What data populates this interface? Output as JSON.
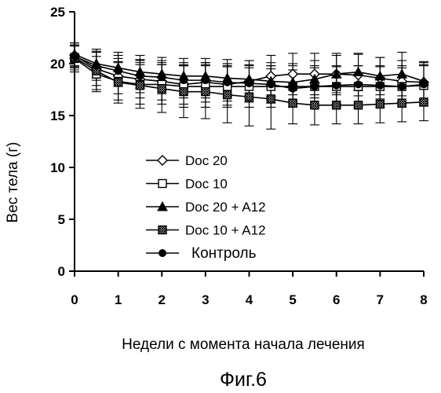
{
  "chart_data": {
    "type": "line",
    "xlabel": "Недели с момента начала лечения",
    "ylabel": "Вес тела (г)",
    "caption": "Фиг.6",
    "xlim": [
      0,
      8
    ],
    "ylim": [
      0,
      25
    ],
    "xticks": [
      0,
      1,
      2,
      3,
      4,
      5,
      6,
      7,
      8
    ],
    "yticks": [
      0,
      5,
      10,
      15,
      20,
      25
    ],
    "legend_position": "center-left",
    "x": [
      0,
      0.5,
      1,
      1.5,
      2,
      2.5,
      3,
      3.5,
      4,
      4.5,
      5,
      5.5,
      6,
      6.5,
      7,
      7.5,
      8
    ],
    "series": [
      {
        "name": "Doc 20",
        "marker": "diamond-open",
        "values": [
          20.8,
          19.5,
          18.8,
          18.5,
          18.3,
          18.0,
          18.2,
          18.0,
          18.3,
          18.8,
          19.0,
          19.0,
          19.0,
          18.9,
          18.6,
          18.3,
          18.2
        ],
        "errors": [
          1.2,
          1.6,
          1.7,
          1.8,
          1.8,
          1.9,
          1.9,
          2.0,
          2.0,
          2.0,
          2.0,
          2.0,
          2.0,
          2.0,
          2.0,
          2.0,
          2.0
        ]
      },
      {
        "name": "Doc 10",
        "marker": "square-open",
        "values": [
          20.5,
          19.0,
          18.3,
          18.0,
          18.0,
          17.8,
          17.8,
          17.8,
          17.8,
          17.8,
          17.8,
          17.8,
          17.8,
          17.8,
          17.8,
          17.8,
          17.9
        ],
        "errors": [
          1.3,
          1.7,
          1.8,
          1.9,
          1.9,
          2.0,
          2.0,
          2.0,
          2.0,
          2.0,
          2.0,
          2.0,
          2.0,
          2.0,
          2.0,
          2.0,
          2.0
        ]
      },
      {
        "name": "Doc 20 + A12",
        "marker": "triangle-filled",
        "values": [
          20.9,
          20.0,
          19.6,
          19.2,
          19.0,
          18.8,
          18.8,
          18.6,
          18.5,
          18.3,
          18.2,
          18.5,
          19.0,
          19.2,
          18.8,
          19.0,
          18.3
        ],
        "errors": [
          1.1,
          1.4,
          1.5,
          1.6,
          1.6,
          1.7,
          1.7,
          1.8,
          1.8,
          1.8,
          1.8,
          1.8,
          1.8,
          1.8,
          1.8,
          2.1,
          1.8
        ]
      },
      {
        "name": "Doc 10 + A12",
        "marker": "square-hatched",
        "values": [
          20.6,
          19.3,
          18.2,
          17.9,
          17.6,
          17.3,
          17.3,
          17.0,
          16.8,
          16.6,
          16.2,
          16.0,
          16.0,
          16.0,
          16.1,
          16.2,
          16.3
        ],
        "errors": [
          1.2,
          1.8,
          2.0,
          2.2,
          2.3,
          2.5,
          2.6,
          2.7,
          2.8,
          2.9,
          2.0,
          1.9,
          1.8,
          1.8,
          1.8,
          1.8,
          1.8
        ]
      },
      {
        "name": "Контроль",
        "marker": "circle-filled",
        "values": [
          20.7,
          19.8,
          19.3,
          18.8,
          18.7,
          18.4,
          18.4,
          18.2,
          18.1,
          18.0,
          17.6,
          17.8,
          17.9,
          18.0,
          17.9,
          17.8,
          18.0
        ],
        "errors": [
          1.0,
          1.4,
          1.5,
          1.6,
          1.6,
          1.7,
          1.7,
          1.8,
          1.8,
          1.8,
          1.8,
          1.8,
          1.8,
          1.8,
          1.8,
          1.8,
          1.8
        ]
      }
    ]
  }
}
